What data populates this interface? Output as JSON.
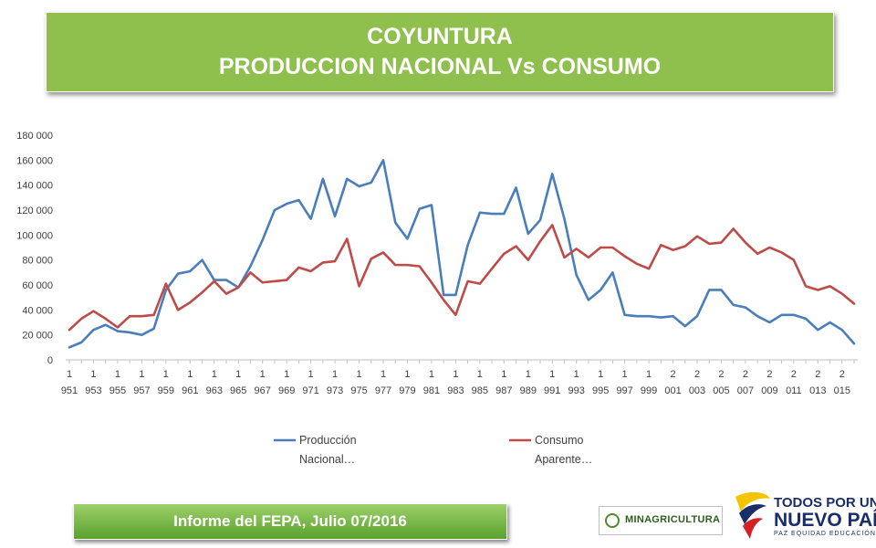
{
  "header": {
    "line1": "COYUNTURA",
    "line2": "PRODUCCION NACIONAL Vs CONSUMO"
  },
  "footer": {
    "label": "Informe del FEPA, Julio 07/2016"
  },
  "logos": {
    "ministry": "MINAGRICULTURA",
    "slogan_line1": "TODOS POR UN",
    "slogan_line2": "NUEVO PAÍS",
    "slogan_line3": "PAZ  EQUIDAD  EDUCACIÓN"
  },
  "colors": {
    "banner_green": "#8fbf4d",
    "produccion": "#4a7ebb",
    "consumo": "#be4b48"
  },
  "chart_data": {
    "type": "line",
    "x": [
      1951,
      1952,
      1953,
      1954,
      1955,
      1956,
      1957,
      1958,
      1959,
      1960,
      1961,
      1962,
      1963,
      1964,
      1965,
      1966,
      1967,
      1968,
      1969,
      1970,
      1971,
      1972,
      1973,
      1974,
      1975,
      1976,
      1977,
      1978,
      1979,
      1980,
      1981,
      1982,
      1983,
      1984,
      1985,
      1986,
      1987,
      1988,
      1989,
      1990,
      1991,
      1992,
      1993,
      1994,
      1995,
      1996,
      1997,
      1998,
      1999,
      2000,
      2001,
      2002,
      2003,
      2004,
      2005,
      2006,
      2007,
      2008,
      2009,
      2010,
      2011,
      2012,
      2013,
      2014,
      2015,
      2016
    ],
    "x_tick_labels": [
      {
        "top": "1",
        "bottom": "951"
      },
      {
        "top": "1",
        "bottom": "953"
      },
      {
        "top": "1",
        "bottom": "955"
      },
      {
        "top": "1",
        "bottom": "957"
      },
      {
        "top": "1",
        "bottom": "959"
      },
      {
        "top": "1",
        "bottom": "961"
      },
      {
        "top": "1",
        "bottom": "963"
      },
      {
        "top": "1",
        "bottom": "965"
      },
      {
        "top": "1",
        "bottom": "967"
      },
      {
        "top": "1",
        "bottom": "969"
      },
      {
        "top": "1",
        "bottom": "971"
      },
      {
        "top": "1",
        "bottom": "973"
      },
      {
        "top": "1",
        "bottom": "975"
      },
      {
        "top": "1",
        "bottom": "977"
      },
      {
        "top": "1",
        "bottom": "979"
      },
      {
        "top": "1",
        "bottom": "981"
      },
      {
        "top": "1",
        "bottom": "983"
      },
      {
        "top": "1",
        "bottom": "985"
      },
      {
        "top": "1",
        "bottom": "987"
      },
      {
        "top": "1",
        "bottom": "989"
      },
      {
        "top": "1",
        "bottom": "991"
      },
      {
        "top": "1",
        "bottom": "993"
      },
      {
        "top": "1",
        "bottom": "995"
      },
      {
        "top": "1",
        "bottom": "997"
      },
      {
        "top": "1",
        "bottom": "999"
      },
      {
        "top": "2",
        "bottom": "001"
      },
      {
        "top": "2",
        "bottom": "003"
      },
      {
        "top": "2",
        "bottom": "005"
      },
      {
        "top": "2",
        "bottom": "007"
      },
      {
        "top": "2",
        "bottom": "009"
      },
      {
        "top": "2",
        "bottom": "011"
      },
      {
        "top": "2",
        "bottom": "013"
      },
      {
        "top": "2",
        "bottom": "015"
      }
    ],
    "y_ticks": [
      "0",
      "20 000",
      "40 000",
      "60 000",
      "80 000",
      "100 000",
      "120 000",
      "140 000",
      "160 000",
      "180 000"
    ],
    "ylim": [
      0,
      180000
    ],
    "grid": false,
    "legend_position": "bottom",
    "series": [
      {
        "name": "Producción Nacional…",
        "color": "#4a7ebb",
        "values": [
          10000,
          14000,
          24000,
          28000,
          23000,
          22000,
          20000,
          25000,
          56000,
          69000,
          71000,
          80000,
          64000,
          64000,
          58000,
          75000,
          96000,
          120000,
          125000,
          128000,
          113000,
          145000,
          115000,
          145000,
          139000,
          142000,
          160000,
          110000,
          97000,
          121000,
          124000,
          52000,
          52000,
          92000,
          118000,
          117000,
          117000,
          138000,
          101000,
          112000,
          149000,
          113000,
          68000,
          48000,
          56000,
          70000,
          36000,
          35000,
          35000,
          34000,
          35000,
          27000,
          35000,
          56000,
          56000,
          44000,
          42000,
          35000,
          30000,
          36000,
          36000,
          33000,
          24000,
          30000,
          24000,
          13000
        ]
      },
      {
        "name": "Consumo Aparente…",
        "color": "#be4b48",
        "values": [
          24000,
          33000,
          39000,
          33000,
          26000,
          35000,
          35000,
          36000,
          61000,
          40000,
          46000,
          54000,
          63000,
          53000,
          58000,
          70000,
          62000,
          63000,
          64000,
          74000,
          71000,
          78000,
          79000,
          97000,
          59000,
          81000,
          86000,
          76000,
          76000,
          75000,
          62000,
          48000,
          36000,
          63000,
          61000,
          73000,
          85000,
          91000,
          80000,
          95000,
          108000,
          82000,
          89000,
          82000,
          90000,
          90000,
          83000,
          77000,
          73000,
          92000,
          88000,
          91000,
          99000,
          93000,
          94000,
          105000,
          94000,
          85000,
          90000,
          86000,
          80000,
          59000,
          56000,
          59000,
          53000,
          45000
        ]
      }
    ]
  }
}
